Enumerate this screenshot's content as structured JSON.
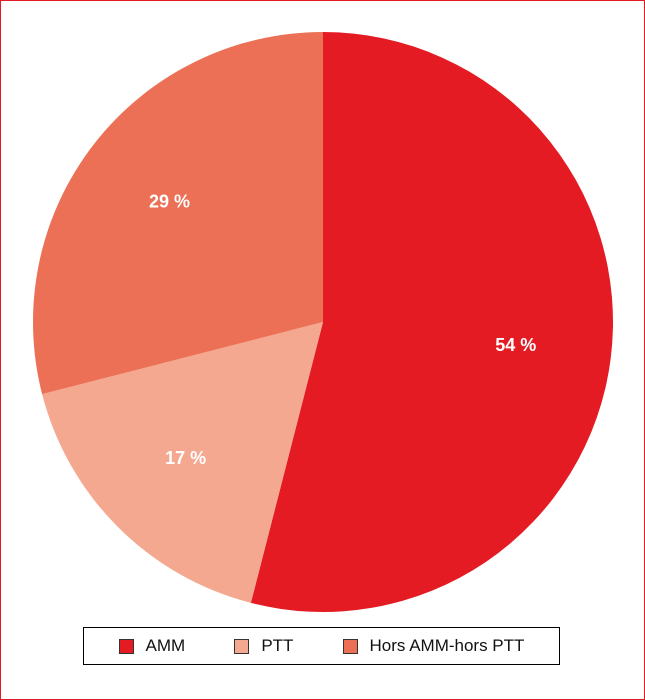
{
  "chart_data": {
    "type": "pie",
    "title": "",
    "slices": [
      {
        "name": "AMM",
        "value": 54,
        "label": "54 %",
        "color": "#e41b23"
      },
      {
        "name": "PTT",
        "value": 17,
        "label": "17 %",
        "color": "#f4a88f"
      },
      {
        "name": "Hors AMM-hors PTT",
        "value": 29,
        "label": "29 %",
        "color": "#ec7055"
      }
    ],
    "start_angle_deg": 0,
    "direction": "clockwise",
    "legend": {
      "placement": "bottom",
      "entries": [
        "AMM",
        "PTT",
        "Hors AMM-hors PTT"
      ]
    }
  },
  "colors": {
    "border": "#e41b23",
    "label_text": "#ffffff"
  }
}
